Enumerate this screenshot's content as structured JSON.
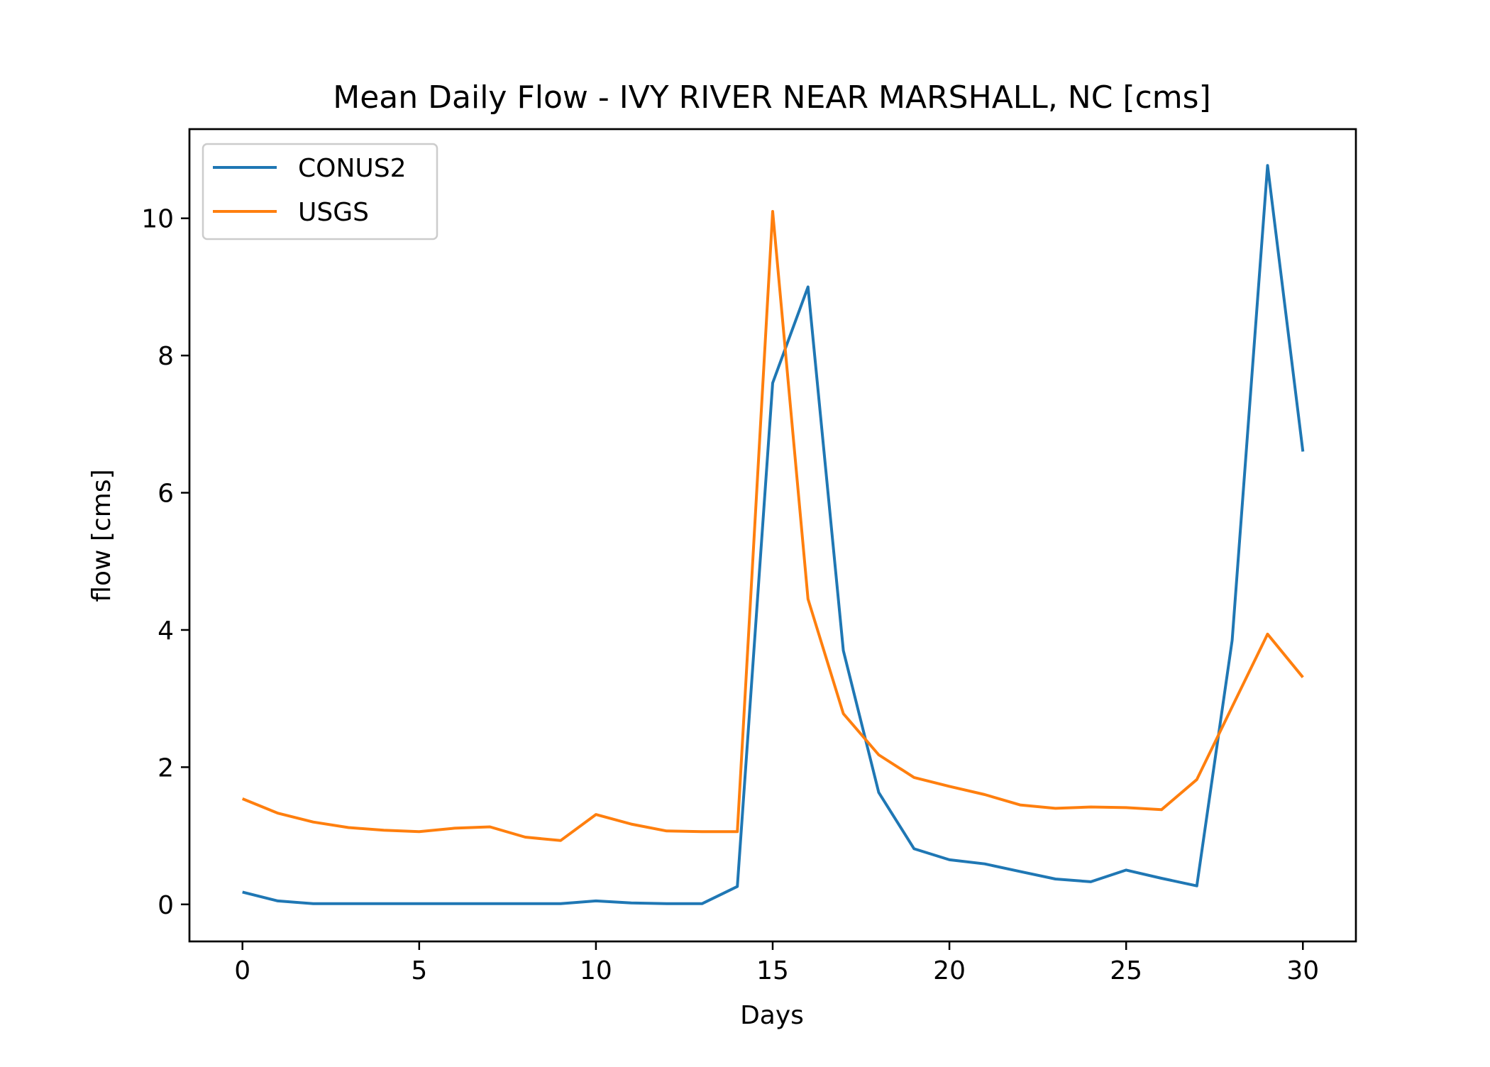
{
  "chart_data": {
    "type": "line",
    "title": "Mean Daily Flow - IVY RIVER NEAR MARSHALL, NC [cms]",
    "xlabel": "Days",
    "ylabel": "flow [cms]",
    "xlim": [
      -1.5,
      31.5
    ],
    "ylim": [
      -0.54,
      11.3
    ],
    "xticks": [
      0,
      5,
      10,
      15,
      20,
      25,
      30
    ],
    "xtick_labels": [
      "0",
      "5",
      "10",
      "15",
      "20",
      "25",
      "30"
    ],
    "yticks": [
      0,
      2,
      4,
      6,
      8,
      10
    ],
    "ytick_labels": [
      "0",
      "2",
      "4",
      "6",
      "8",
      "10"
    ],
    "grid": false,
    "legend_position": "top-left",
    "x": [
      0,
      1,
      2,
      3,
      4,
      5,
      6,
      7,
      8,
      9,
      10,
      11,
      12,
      13,
      14,
      15,
      16,
      17,
      18,
      19,
      20,
      21,
      22,
      23,
      24,
      25,
      26,
      27,
      28,
      29,
      30
    ],
    "series": [
      {
        "name": "CONUS2",
        "color": "#1f77b4",
        "values": [
          0.18,
          0.05,
          0.01,
          0.01,
          0.01,
          0.01,
          0.01,
          0.01,
          0.01,
          0.01,
          0.05,
          0.02,
          0.01,
          0.01,
          0.26,
          7.6,
          9.0,
          3.7,
          1.63,
          0.81,
          0.65,
          0.59,
          0.48,
          0.37,
          0.33,
          0.5,
          0.38,
          0.27,
          3.85,
          10.77,
          6.6
        ]
      },
      {
        "name": "USGS",
        "color": "#ff7f0e",
        "values": [
          1.54,
          1.33,
          1.2,
          1.12,
          1.08,
          1.06,
          1.11,
          1.13,
          0.98,
          0.93,
          1.31,
          1.17,
          1.07,
          1.06,
          1.06,
          10.1,
          4.45,
          2.78,
          2.18,
          1.85,
          1.72,
          1.6,
          1.45,
          1.4,
          1.42,
          1.41,
          1.38,
          1.82,
          2.88,
          3.94,
          3.31
        ]
      }
    ]
  }
}
